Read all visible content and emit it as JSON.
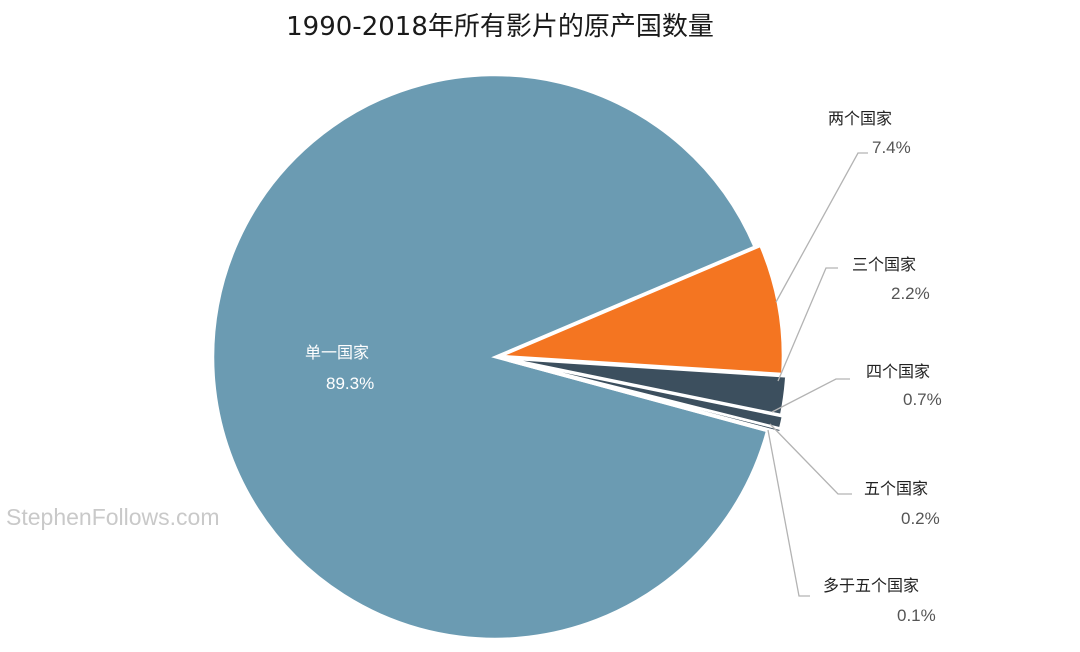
{
  "chart_data": {
    "type": "pie",
    "title": "1990-2018年所有影片的原产国数量",
    "slices": [
      {
        "label": "单一国家",
        "value": 89.3,
        "display": "89.3%",
        "color": "#6b9bb2"
      },
      {
        "label": "两个国家",
        "value": 7.4,
        "display": "7.4%",
        "color": "#f47521"
      },
      {
        "label": "三个国家",
        "value": 2.2,
        "display": "2.2%",
        "color": "#3c4f5e"
      },
      {
        "label": "四个国家",
        "value": 0.7,
        "display": "0.7%",
        "color": "#3c4f5e"
      },
      {
        "label": "五个国家",
        "value": 0.2,
        "display": "0.2%",
        "color": "#3c4f5e"
      },
      {
        "label": "多于五个国家",
        "value": 0.1,
        "display": "0.1%",
        "color": "#3c4f5e"
      }
    ]
  },
  "watermark": "StephenFollows.com"
}
